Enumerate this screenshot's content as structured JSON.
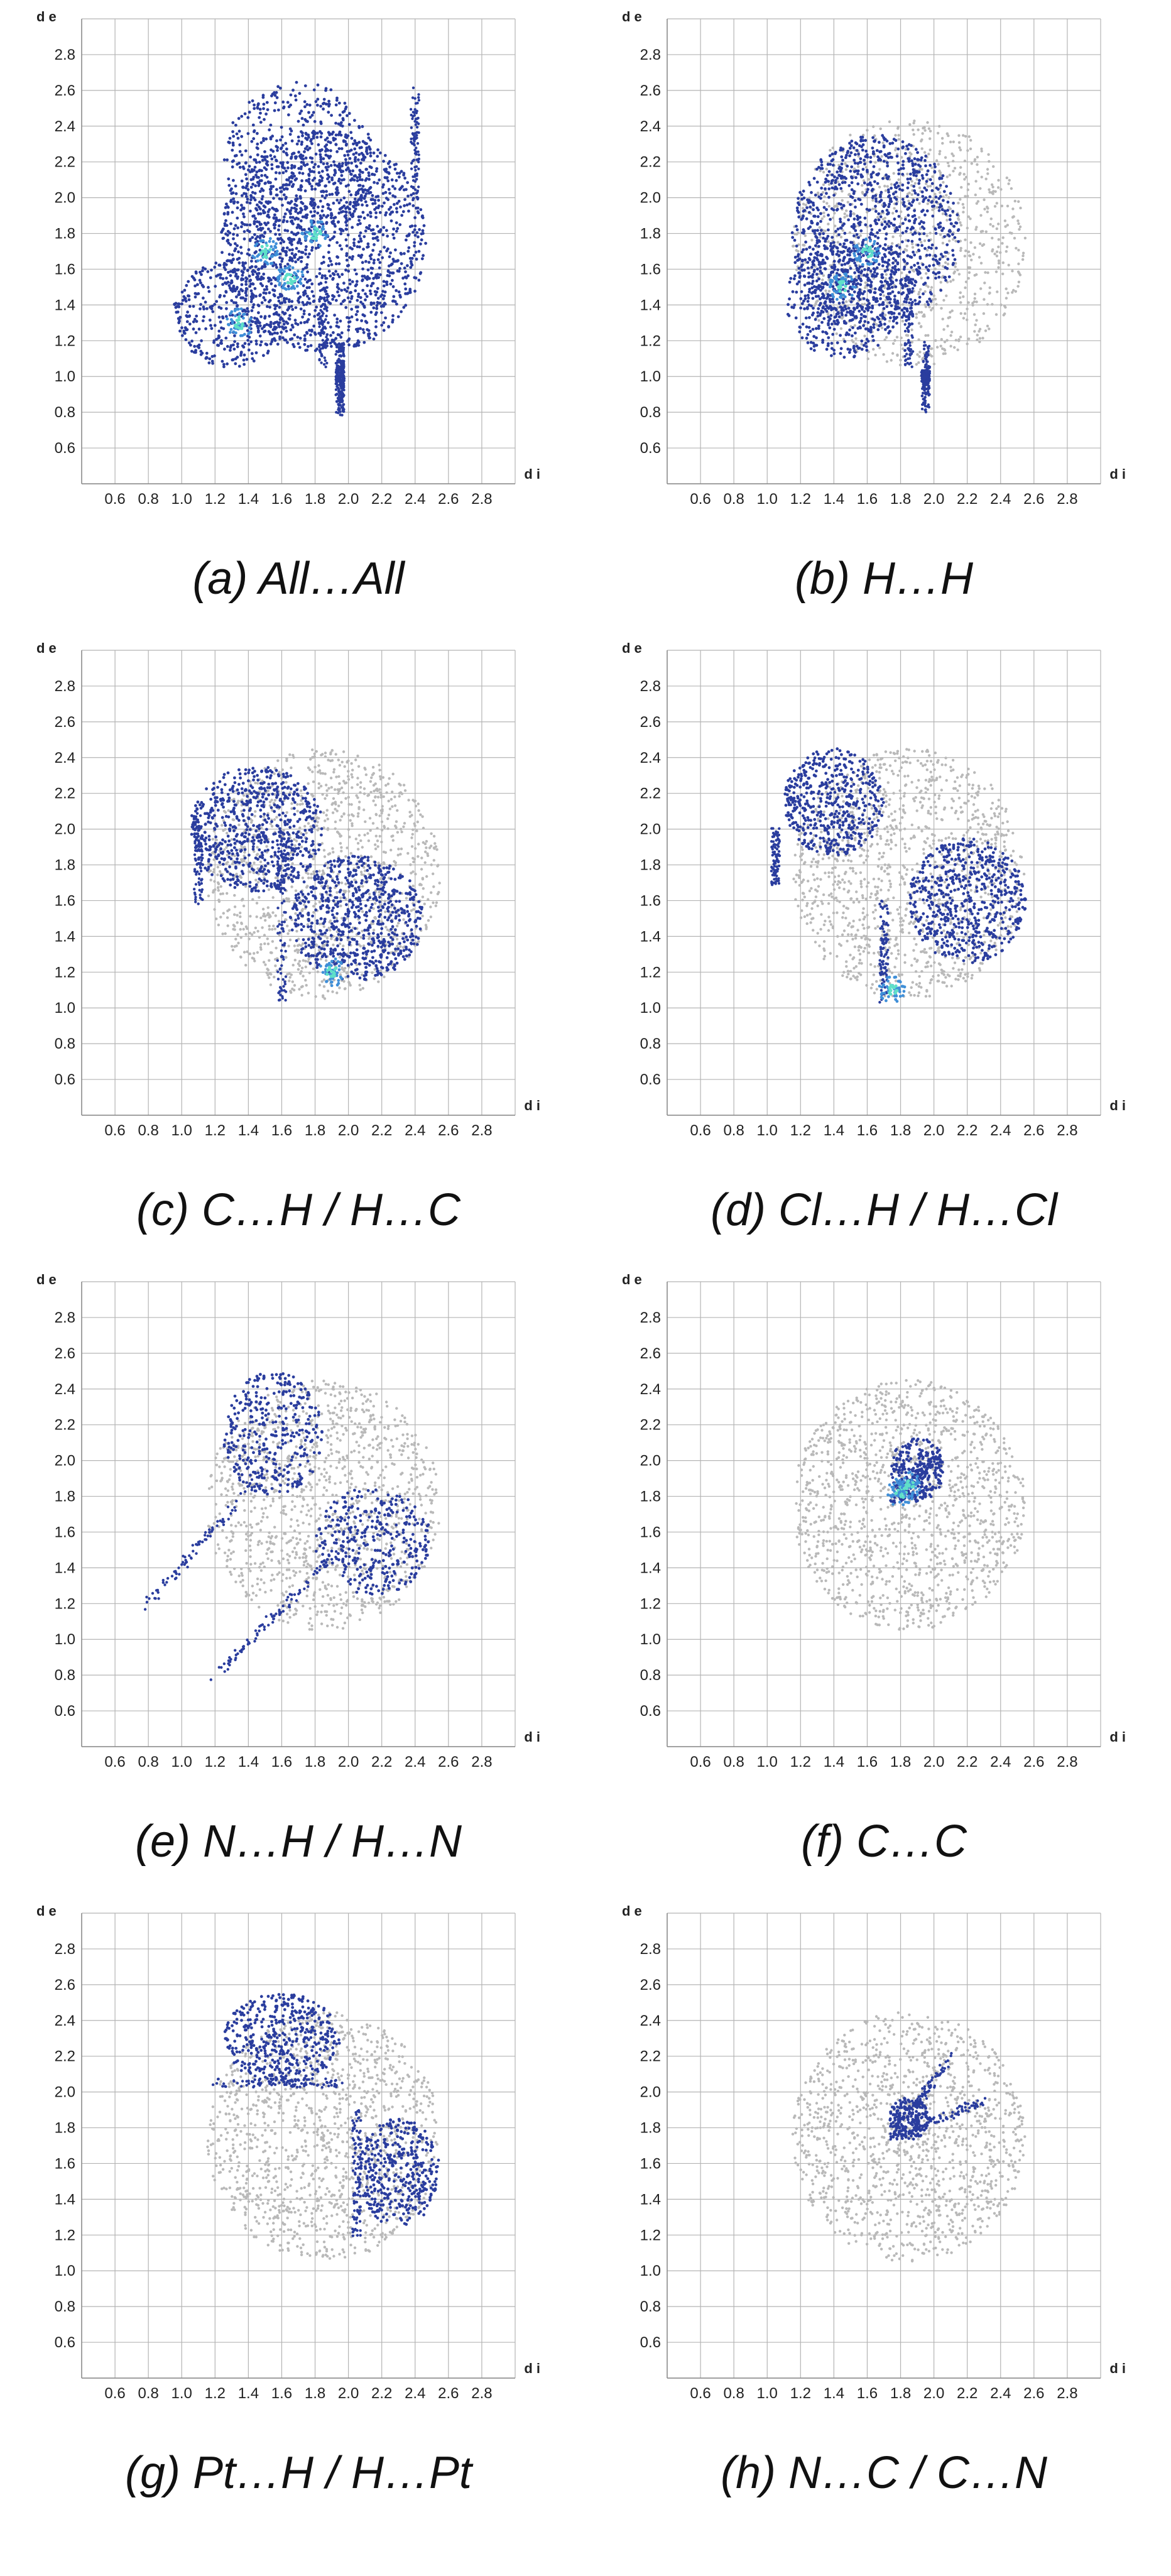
{
  "figure": {
    "axis_labels": {
      "x": "d i",
      "y": "d e"
    },
    "axis_range": {
      "x": [
        0.4,
        3.0
      ],
      "y": [
        0.4,
        3.0
      ]
    },
    "x_ticks": [
      "0.6",
      "0.8",
      "1.0",
      "1.2",
      "1.4",
      "1.6",
      "1.8",
      "2.0",
      "2.2",
      "2.4",
      "2.6",
      "2.8"
    ],
    "y_ticks": [
      "0.6",
      "0.8",
      "1.0",
      "1.2",
      "1.4",
      "1.6",
      "1.8",
      "2.0",
      "2.2",
      "2.4",
      "2.6",
      "2.8"
    ],
    "colors": {
      "grid": "#b4b4b4",
      "background_points": "#b9b9b9",
      "highlight_points": "#2a3d9e",
      "dense_points": "#3f8fd8",
      "hot_points": "#5fe0c8"
    }
  },
  "chart_data": [
    {
      "type": "scatter",
      "panel": "a",
      "caption": "(a) All…All",
      "xlabel": "d i",
      "ylabel": "d e",
      "xlim": [
        0.4,
        3.0
      ],
      "ylim": [
        0.4,
        3.0
      ],
      "grid": true,
      "highlight_regions": [
        {
          "cx": 1.85,
          "cy": 1.75,
          "rx": 0.62,
          "ry": 0.62,
          "n": 1400
        },
        {
          "cx": 1.7,
          "cy": 2.2,
          "rx": 0.45,
          "ry": 0.45,
          "n": 500
        },
        {
          "cx": 1.3,
          "cy": 1.35,
          "rx": 0.35,
          "ry": 0.3,
          "n": 400
        }
      ],
      "highlight_spikes": [
        [
          1.95,
          1.95,
          0.8,
          1.18
        ],
        [
          1.95,
          1.95,
          1.05,
          0.95
        ],
        [
          1.95,
          1.95,
          1.18,
          0.8
        ],
        [
          1.85,
          1.85,
          1.55,
          1.05
        ],
        [
          2.4,
          2.4,
          2.6,
          2.0
        ]
      ],
      "background_regions": [],
      "hot_spots": [
        [
          1.8,
          1.8
        ],
        [
          1.5,
          1.7
        ],
        [
          1.65,
          1.55
        ],
        [
          1.35,
          1.3
        ]
      ]
    },
    {
      "type": "scatter",
      "panel": "b",
      "caption": "(b) H…H",
      "xlabel": "d i",
      "ylabel": "d e",
      "xlim": [
        0.4,
        3.0
      ],
      "ylim": [
        0.4,
        3.0
      ],
      "grid": true,
      "highlight_regions": [
        {
          "cx": 1.65,
          "cy": 1.8,
          "rx": 0.5,
          "ry": 0.55,
          "n": 1100
        },
        {
          "cx": 1.45,
          "cy": 1.45,
          "rx": 0.35,
          "ry": 0.35,
          "n": 400
        }
      ],
      "highlight_spikes": [
        [
          1.95,
          1.95,
          0.8,
          1.18
        ],
        [
          1.95,
          1.95,
          1.05,
          0.95
        ],
        [
          1.85,
          1.85,
          1.55,
          1.05
        ]
      ],
      "background_regions": [
        {
          "cx": 1.85,
          "cy": 1.75,
          "rx": 0.7,
          "ry": 0.7,
          "n": 900
        }
      ],
      "hot_spots": [
        [
          1.45,
          1.5
        ],
        [
          1.6,
          1.7
        ]
      ]
    },
    {
      "type": "scatter",
      "panel": "c",
      "caption": "(c) C…H / H…C",
      "xlabel": "d i",
      "ylabel": "d e",
      "xlim": [
        0.4,
        3.0
      ],
      "ylim": [
        0.4,
        3.0
      ],
      "grid": true,
      "highlight_regions": [
        {
          "cx": 1.45,
          "cy": 2.0,
          "rx": 0.4,
          "ry": 0.35,
          "n": 700
        },
        {
          "cx": 2.05,
          "cy": 1.5,
          "rx": 0.4,
          "ry": 0.35,
          "n": 700
        }
      ],
      "highlight_spikes": [
        [
          1.1,
          1.1,
          1.6,
          2.1
        ],
        [
          1.6,
          1.6,
          1.05,
          1.9
        ]
      ],
      "background_regions": [
        {
          "cx": 1.85,
          "cy": 1.75,
          "rx": 0.7,
          "ry": 0.7,
          "n": 1200
        }
      ],
      "hot_spots": [
        [
          1.9,
          1.2
        ]
      ]
    },
    {
      "type": "scatter",
      "panel": "d",
      "caption": "(d) Cl…H / H…Cl",
      "xlabel": "d i",
      "ylabel": "d e",
      "xlim": [
        0.4,
        3.0
      ],
      "ylim": [
        0.4,
        3.0
      ],
      "grid": true,
      "highlight_regions": [
        {
          "cx": 1.4,
          "cy": 2.15,
          "rx": 0.3,
          "ry": 0.3,
          "n": 500
        },
        {
          "cx": 2.2,
          "cy": 1.6,
          "rx": 0.35,
          "ry": 0.35,
          "n": 600
        }
      ],
      "highlight_spikes": [
        [
          1.05,
          1.05,
          1.7,
          2.0
        ],
        [
          1.7,
          1.7,
          1.05,
          1.6
        ]
      ],
      "background_regions": [
        {
          "cx": 1.85,
          "cy": 1.75,
          "rx": 0.7,
          "ry": 0.7,
          "n": 1200
        }
      ],
      "hot_spots": [
        [
          1.75,
          1.1
        ]
      ]
    },
    {
      "type": "scatter",
      "panel": "e",
      "caption": "(e) N…H / H…N",
      "xlabel": "d i",
      "ylabel": "d e",
      "xlim": [
        0.4,
        3.0
      ],
      "ylim": [
        0.4,
        3.0
      ],
      "grid": true,
      "highlight_regions": [
        {
          "cx": 1.55,
          "cy": 2.15,
          "rx": 0.3,
          "ry": 0.35,
          "n": 350
        },
        {
          "cx": 2.15,
          "cy": 1.55,
          "rx": 0.35,
          "ry": 0.3,
          "n": 350
        }
      ],
      "highlight_spikes": [
        [
          0.78,
          1.5,
          1.18,
          1.95
        ],
        [
          1.18,
          1.95,
          0.78,
          1.5
        ]
      ],
      "background_regions": [
        {
          "cx": 1.85,
          "cy": 1.75,
          "rx": 0.7,
          "ry": 0.7,
          "n": 1200
        }
      ],
      "hot_spots": []
    },
    {
      "type": "scatter",
      "panel": "f",
      "caption": "(f) C…C",
      "xlabel": "d i",
      "ylabel": "d e",
      "xlim": [
        0.4,
        3.0
      ],
      "ylim": [
        0.4,
        3.0
      ],
      "grid": true,
      "highlight_regions": [
        {
          "cx": 1.9,
          "cy": 1.95,
          "rx": 0.16,
          "ry": 0.18,
          "n": 250
        }
      ],
      "highlight_spikes": [
        [
          1.75,
          2.05,
          1.75,
          2.05
        ]
      ],
      "background_regions": [
        {
          "cx": 1.85,
          "cy": 1.75,
          "rx": 0.7,
          "ry": 0.7,
          "n": 1300
        }
      ],
      "hot_spots": [
        [
          1.8,
          1.82
        ],
        [
          1.85,
          1.86
        ]
      ]
    },
    {
      "type": "scatter",
      "panel": "g",
      "caption": "(g) Pt…H / H…Pt",
      "xlabel": "d i",
      "ylabel": "d e",
      "xlim": [
        0.4,
        3.0
      ],
      "ylim": [
        0.4,
        3.0
      ],
      "grid": true,
      "highlight_regions": [
        {
          "cx": 1.6,
          "cy": 2.3,
          "rx": 0.35,
          "ry": 0.25,
          "n": 450
        },
        {
          "cx": 2.3,
          "cy": 1.55,
          "rx": 0.25,
          "ry": 0.3,
          "n": 400
        }
      ],
      "highlight_spikes": [
        [
          1.2,
          1.95,
          2.05,
          2.05
        ],
        [
          2.05,
          2.05,
          1.2,
          1.9
        ]
      ],
      "background_regions": [
        {
          "cx": 1.85,
          "cy": 1.75,
          "rx": 0.7,
          "ry": 0.7,
          "n": 1300
        }
      ],
      "hot_spots": []
    },
    {
      "type": "scatter",
      "panel": "h",
      "caption": "(h) N…C / C…N",
      "xlabel": "d i",
      "ylabel": "d e",
      "xlim": [
        0.4,
        3.0
      ],
      "ylim": [
        0.4,
        3.0
      ],
      "grid": true,
      "highlight_regions": [
        {
          "cx": 1.85,
          "cy": 1.85,
          "rx": 0.12,
          "ry": 0.12,
          "n": 200
        }
      ],
      "highlight_spikes": [
        [
          1.75,
          2.1,
          1.75,
          2.2
        ],
        [
          1.75,
          2.3,
          1.75,
          1.95
        ]
      ],
      "background_regions": [
        {
          "cx": 1.85,
          "cy": 1.75,
          "rx": 0.7,
          "ry": 0.7,
          "n": 1300
        }
      ],
      "hot_spots": []
    }
  ]
}
